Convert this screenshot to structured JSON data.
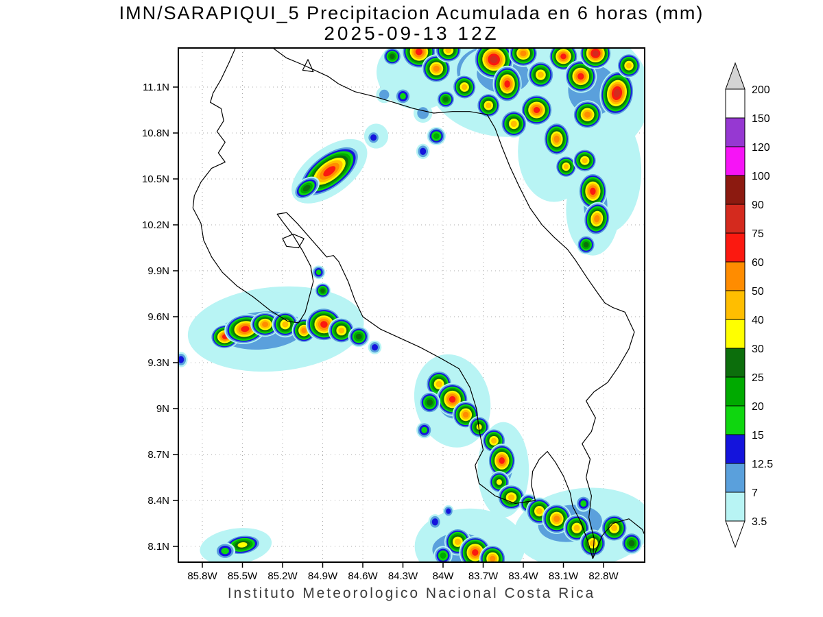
{
  "title": {
    "line1": "IMN/SARAPIQUI_5 Precipitacion Acumulada en 6 horas (mm)",
    "line2": "2025-09-13 12Z"
  },
  "caption": "Instituto Meteorologico Nacional Costa Rica",
  "axes": {
    "lat_labels": [
      "11.1N",
      "10.8N",
      "10.5N",
      "10.2N",
      "9.9N",
      "9.6N",
      "9.3N",
      "9N",
      "8.7N",
      "8.4N",
      "8.1N"
    ],
    "lat_values": [
      11.1,
      10.8,
      10.5,
      10.2,
      9.9,
      9.6,
      9.3,
      9.0,
      8.7,
      8.4,
      8.1
    ],
    "lon_labels": [
      "85.8W",
      "85.5W",
      "85.2W",
      "84.9W",
      "84.6W",
      "84.3W",
      "84W",
      "83.7W",
      "83.4W",
      "83.1W",
      "82.8W"
    ],
    "lon_values": [
      85.8,
      85.5,
      85.2,
      84.9,
      84.6,
      84.3,
      84.0,
      83.7,
      83.4,
      83.1,
      82.8
    ]
  },
  "chart_data": {
    "type": "heatmap",
    "title": "IMN/SARAPIQUI_5 Precipitacion Acumulada en 6 horas (mm)",
    "valid_time": "2025-09-13 12Z",
    "units": "mm",
    "lon_range_w": [
      85.98,
      82.49
    ],
    "lat_range_n": [
      7.99,
      11.36
    ],
    "colorbar": {
      "levels_mm": [
        3.5,
        7,
        12.5,
        15,
        20,
        25,
        30,
        40,
        50,
        60,
        75,
        90,
        100,
        120,
        150,
        200
      ],
      "labels": [
        "200",
        "150",
        "120",
        "100",
        "90",
        "75",
        "60",
        "50",
        "40",
        "30",
        "25",
        "20",
        "15",
        "12.5",
        "7",
        "3.5"
      ],
      "band_colors": [
        "#b8f4f4",
        "#5aa0dc",
        "#1414dc",
        "#0fd60f",
        "#00aa00",
        "#0c6e0c",
        "#ffff00",
        "#ffbe00",
        "#ff8c00",
        "#fb1910",
        "#d42a1e",
        "#8c1a10",
        "#f614f6",
        "#9638d2",
        "#ffffff"
      ],
      "above_color": "#d4d4d4",
      "below_color": "#ffffff"
    },
    "cells_format": [
      "lon_w",
      "lat_n",
      "peak_mm",
      "radius_deg",
      "stretch_x",
      "stretch_y",
      "rotation_deg"
    ],
    "background_patches": [
      [
        83.55,
        11.15,
        3.5,
        0.5,
        1.15,
        0.75,
        5
      ],
      [
        82.9,
        11.05,
        3.5,
        0.45,
        1.0,
        0.9,
        0
      ],
      [
        82.78,
        10.55,
        3.5,
        0.35,
        0.75,
        1.15,
        0
      ],
      [
        84.2,
        11.18,
        3.5,
        0.3,
        1.0,
        0.75,
        15
      ],
      [
        84.85,
        10.55,
        3.5,
        0.33,
        1.0,
        0.45,
        -37
      ],
      [
        85.25,
        9.52,
        3.5,
        0.55,
        1.2,
        0.5,
        -5
      ],
      [
        83.93,
        9.05,
        3.5,
        0.28,
        1.0,
        1.1,
        -15
      ],
      [
        83.55,
        8.6,
        3.5,
        0.24,
        0.8,
        1.3,
        0
      ],
      [
        83.8,
        8.1,
        3.5,
        0.33,
        1.25,
        0.75,
        0
      ],
      [
        82.95,
        8.22,
        3.5,
        0.4,
        1.3,
        0.65,
        -6
      ],
      [
        85.55,
        8.1,
        3.5,
        0.18,
        1.5,
        0.65,
        -8
      ],
      [
        83.17,
        10.68,
        3.5,
        0.3,
        0.9,
        1.1,
        0
      ],
      [
        82.88,
        10.3,
        3.5,
        0.25,
        0.8,
        1.2,
        0
      ],
      [
        84.5,
        10.78,
        3.5,
        0.09,
        1.0,
        0.9,
        0
      ],
      [
        83.66,
        11.2,
        7,
        0.35,
        1.1,
        0.75,
        5
      ],
      [
        82.88,
        11.08,
        7,
        0.3,
        1.0,
        0.9,
        0
      ],
      [
        85.35,
        9.51,
        7,
        0.4,
        1.3,
        0.5,
        -5
      ],
      [
        84.88,
        9.54,
        7,
        0.2,
        1.1,
        0.7,
        5
      ],
      [
        82.86,
        10.33,
        7,
        0.18,
        0.8,
        1.2,
        0
      ],
      [
        83.88,
        8.08,
        7,
        0.25,
        1.3,
        0.7,
        0
      ],
      [
        83.05,
        8.25,
        7,
        0.3,
        1.3,
        0.65,
        -6
      ],
      [
        83.93,
        9.05,
        7,
        0.18,
        1.0,
        1.05,
        -15
      ],
      [
        83.56,
        8.62,
        7,
        0.16,
        0.8,
        1.25,
        0
      ],
      [
        84.85,
        10.55,
        7,
        0.29,
        1.0,
        0.42,
        -37
      ],
      [
        83.55,
        11.18,
        7,
        0.28,
        1.15,
        0.7,
        5
      ]
    ],
    "cells": [
      [
        84.18,
        11.33,
        60,
        0.13,
        1.0,
        0.85,
        15
      ],
      [
        84.38,
        11.3,
        25,
        0.07,
        1.0,
        0.85,
        0
      ],
      [
        84.05,
        11.22,
        50,
        0.11,
        1.0,
        0.85,
        0
      ],
      [
        83.96,
        11.34,
        40,
        0.1,
        1.0,
        0.8,
        0
      ],
      [
        83.84,
        11.1,
        40,
        0.09,
        1.0,
        0.9,
        -20
      ],
      [
        83.98,
        11.02,
        25,
        0.07,
        1.0,
        0.85,
        0
      ],
      [
        83.62,
        11.28,
        75,
        0.15,
        1.0,
        0.85,
        10
      ],
      [
        83.52,
        11.12,
        60,
        0.12,
        0.9,
        1.0,
        0
      ],
      [
        83.4,
        11.32,
        50,
        0.11,
        1.0,
        0.8,
        0
      ],
      [
        83.27,
        11.18,
        40,
        0.1,
        1.0,
        0.9,
        0
      ],
      [
        83.1,
        11.3,
        60,
        0.11,
        1.0,
        0.85,
        0
      ],
      [
        82.97,
        11.17,
        60,
        0.12,
        1.0,
        0.9,
        -15
      ],
      [
        82.86,
        11.32,
        75,
        0.12,
        1.0,
        0.85,
        0
      ],
      [
        82.7,
        11.06,
        75,
        0.15,
        0.85,
        1.0,
        10
      ],
      [
        82.61,
        11.24,
        40,
        0.09,
        1.0,
        0.9,
        0
      ],
      [
        82.92,
        10.92,
        50,
        0.11,
        1.0,
        0.85,
        -10
      ],
      [
        83.3,
        10.95,
        60,
        0.12,
        1.0,
        0.85,
        0
      ],
      [
        83.47,
        10.86,
        40,
        0.1,
        1.0,
        0.9,
        0
      ],
      [
        83.66,
        10.98,
        40,
        0.09,
        1.0,
        0.9,
        0
      ],
      [
        83.15,
        10.76,
        50,
        0.11,
        0.9,
        1.0,
        0
      ],
      [
        83.08,
        10.58,
        40,
        0.08,
        1.0,
        0.9,
        0
      ],
      [
        82.94,
        10.62,
        40,
        0.09,
        1.0,
        0.85,
        0
      ],
      [
        82.88,
        10.42,
        60,
        0.12,
        0.9,
        1.0,
        0
      ],
      [
        82.85,
        10.24,
        50,
        0.11,
        0.9,
        1.0,
        10
      ],
      [
        82.93,
        10.07,
        25,
        0.07,
        1.0,
        0.9,
        0
      ],
      [
        84.05,
        10.78,
        20,
        0.07,
        1.0,
        0.85,
        0
      ],
      [
        84.15,
        10.68,
        12.5,
        0.05,
        1.0,
        1.0,
        0
      ],
      [
        84.3,
        11.04,
        15,
        0.06,
        1.0,
        0.9,
        0
      ],
      [
        84.15,
        10.93,
        7,
        0.07,
        1.0,
        0.9,
        0
      ],
      [
        84.44,
        11.05,
        7,
        0.06,
        1.0,
        0.9,
        0
      ],
      [
        84.85,
        10.55,
        60,
        0.27,
        1.0,
        0.42,
        -37
      ],
      [
        85.02,
        10.44,
        25,
        0.11,
        1.0,
        0.55,
        -37
      ],
      [
        84.52,
        10.77,
        12.5,
        0.05,
        1.0,
        0.9,
        0
      ],
      [
        85.63,
        9.47,
        60,
        0.1,
        1.1,
        0.8,
        -8
      ],
      [
        85.48,
        9.52,
        60,
        0.13,
        1.2,
        0.75,
        -8
      ],
      [
        85.33,
        9.55,
        50,
        0.1,
        1.1,
        0.8,
        0
      ],
      [
        85.18,
        9.55,
        40,
        0.1,
        1.0,
        0.85,
        0
      ],
      [
        85.04,
        9.51,
        50,
        0.09,
        1.0,
        0.9,
        0
      ],
      [
        84.89,
        9.55,
        60,
        0.13,
        1.05,
        0.85,
        5
      ],
      [
        84.76,
        9.51,
        40,
        0.1,
        1.0,
        0.85,
        0
      ],
      [
        84.63,
        9.47,
        25,
        0.08,
        1.0,
        0.85,
        0
      ],
      [
        84.51,
        9.4,
        12.5,
        0.05,
        1.0,
        0.9,
        0
      ],
      [
        84.9,
        9.77,
        25,
        0.06,
        1.0,
        0.85,
        0
      ],
      [
        84.93,
        9.89,
        15,
        0.05,
        1.0,
        0.9,
        0
      ],
      [
        85.96,
        9.32,
        12.5,
        0.05,
        1.0,
        1.0,
        0
      ],
      [
        84.03,
        9.16,
        40,
        0.1,
        1.0,
        0.9,
        0
      ],
      [
        83.93,
        9.06,
        60,
        0.12,
        1.0,
        0.9,
        -10
      ],
      [
        83.83,
        8.96,
        50,
        0.1,
        1.0,
        0.9,
        0
      ],
      [
        84.1,
        9.04,
        25,
        0.08,
        1.0,
        0.9,
        0
      ],
      [
        83.73,
        8.88,
        30,
        0.08,
        1.0,
        0.9,
        0
      ],
      [
        84.14,
        8.86,
        15,
        0.06,
        1.0,
        0.9,
        0
      ],
      [
        83.62,
        8.79,
        40,
        0.09,
        1.0,
        0.9,
        0
      ],
      [
        83.56,
        8.66,
        60,
        0.11,
        0.95,
        1.0,
        0
      ],
      [
        83.58,
        8.52,
        30,
        0.08,
        1.0,
        0.9,
        0
      ],
      [
        83.49,
        8.42,
        40,
        0.1,
        1.05,
        0.85,
        0
      ],
      [
        83.36,
        8.38,
        25,
        0.07,
        1.0,
        0.9,
        0
      ],
      [
        83.89,
        8.13,
        40,
        0.1,
        1.0,
        0.9,
        0
      ],
      [
        83.76,
        8.06,
        60,
        0.12,
        1.0,
        0.9,
        0
      ],
      [
        83.63,
        8.02,
        50,
        0.1,
        1.0,
        0.9,
        0
      ],
      [
        84.0,
        8.04,
        20,
        0.07,
        1.0,
        0.9,
        0
      ],
      [
        84.06,
        8.26,
        12.5,
        0.05,
        1.0,
        1.0,
        0
      ],
      [
        83.96,
        8.33,
        12.5,
        0.04,
        1.0,
        1.0,
        0
      ],
      [
        83.28,
        8.33,
        40,
        0.1,
        1.0,
        0.9,
        0
      ],
      [
        83.15,
        8.28,
        50,
        0.11,
        1.0,
        0.9,
        0
      ],
      [
        83.0,
        8.22,
        40,
        0.1,
        1.0,
        0.9,
        0
      ],
      [
        82.88,
        8.12,
        40,
        0.1,
        1.0,
        0.9,
        0
      ],
      [
        82.72,
        8.22,
        40,
        0.1,
        1.0,
        0.9,
        0
      ],
      [
        82.59,
        8.12,
        25,
        0.08,
        1.0,
        0.9,
        0
      ],
      [
        82.95,
        8.38,
        15,
        0.06,
        1.0,
        0.9,
        0
      ],
      [
        85.5,
        8.11,
        30,
        0.1,
        1.4,
        0.65,
        -8
      ],
      [
        85.63,
        8.07,
        15,
        0.07,
        1.1,
        0.8,
        0
      ]
    ]
  },
  "map": {
    "coastlines": [
      [
        [
          85.55,
          11.36
        ],
        [
          85.6,
          11.26
        ],
        [
          85.66,
          11.15
        ],
        [
          85.72,
          11.06
        ],
        [
          85.74,
          11.0
        ],
        [
          85.66,
          10.96
        ],
        [
          85.64,
          10.88
        ],
        [
          85.69,
          10.81
        ],
        [
          85.63,
          10.74
        ],
        [
          85.68,
          10.67
        ],
        [
          85.63,
          10.61
        ],
        [
          85.73,
          10.57
        ],
        [
          85.81,
          10.48
        ],
        [
          85.86,
          10.39
        ],
        [
          85.87,
          10.31
        ],
        [
          85.81,
          10.21
        ],
        [
          85.79,
          10.1
        ],
        [
          85.73,
          9.99
        ],
        [
          85.65,
          9.89
        ],
        [
          85.54,
          9.8
        ],
        [
          85.42,
          9.73
        ],
        [
          85.29,
          9.64
        ],
        [
          85.16,
          9.57
        ],
        [
          85.08,
          9.56
        ],
        [
          85.03,
          9.63
        ],
        [
          85.0,
          9.73
        ],
        [
          84.97,
          9.83
        ],
        [
          84.99,
          9.93
        ],
        [
          85.05,
          10.03
        ],
        [
          85.12,
          10.13
        ],
        [
          85.19,
          10.21
        ],
        [
          85.24,
          10.27
        ],
        [
          85.17,
          10.28
        ],
        [
          85.09,
          10.21
        ],
        [
          85.0,
          10.12
        ],
        [
          84.92,
          10.04
        ],
        [
          84.87,
          9.99
        ],
        [
          84.82,
          10.0
        ],
        [
          84.78,
          9.96
        ],
        [
          84.71,
          9.83
        ],
        [
          84.66,
          9.71
        ],
        [
          84.6,
          9.6
        ],
        [
          84.47,
          9.52
        ],
        [
          84.32,
          9.46
        ],
        [
          84.17,
          9.4
        ],
        [
          84.02,
          9.33
        ],
        [
          83.88,
          9.26
        ],
        [
          83.8,
          9.14
        ],
        [
          83.75,
          9.0
        ],
        [
          83.73,
          8.86
        ],
        [
          83.7,
          8.73
        ],
        [
          83.76,
          8.63
        ],
        [
          83.73,
          8.51
        ],
        [
          83.61,
          8.43
        ],
        [
          83.46,
          8.38
        ],
        [
          83.31,
          8.4
        ],
        [
          83.34,
          8.5
        ],
        [
          83.33,
          8.59
        ],
        [
          83.28,
          8.67
        ],
        [
          83.22,
          8.72
        ],
        [
          83.16,
          8.65
        ],
        [
          83.1,
          8.56
        ],
        [
          83.05,
          8.45
        ],
        [
          83.03,
          8.36
        ],
        [
          82.97,
          8.26
        ],
        [
          82.92,
          8.14
        ],
        [
          82.88,
          8.02
        ]
      ],
      [
        [
          85.28,
          11.36
        ],
        [
          85.17,
          11.29
        ],
        [
          85.06,
          11.25
        ],
        [
          84.96,
          11.21
        ],
        [
          84.86,
          11.17
        ],
        [
          84.78,
          11.12
        ],
        [
          84.66,
          11.07
        ],
        [
          84.52,
          11.04
        ],
        [
          84.37,
          11.0
        ],
        [
          84.22,
          10.96
        ],
        [
          84.07,
          10.93
        ],
        [
          83.93,
          10.94
        ],
        [
          83.8,
          10.94
        ],
        [
          83.67,
          10.92
        ],
        [
          83.61,
          10.83
        ],
        [
          83.56,
          10.71
        ],
        [
          83.5,
          10.58
        ],
        [
          83.43,
          10.45
        ],
        [
          83.35,
          10.31
        ],
        [
          83.26,
          10.2
        ],
        [
          83.17,
          10.12
        ],
        [
          83.07,
          10.04
        ],
        [
          83.01,
          9.97
        ],
        [
          82.92,
          9.85
        ],
        [
          82.84,
          9.75
        ],
        [
          82.79,
          9.69
        ],
        [
          82.73,
          9.66
        ],
        [
          82.64,
          9.63
        ],
        [
          82.57,
          9.5
        ],
        [
          82.61,
          9.39
        ],
        [
          82.69,
          9.27
        ],
        [
          82.77,
          9.17
        ],
        [
          82.87,
          9.11
        ],
        [
          82.93,
          9.05
        ],
        [
          82.86,
          8.94
        ],
        [
          82.89,
          8.85
        ],
        [
          82.96,
          8.77
        ],
        [
          82.9,
          8.67
        ],
        [
          82.93,
          8.55
        ],
        [
          82.89,
          8.43
        ],
        [
          82.91,
          8.29
        ],
        [
          82.87,
          8.15
        ],
        [
          82.88,
          8.02
        ]
      ],
      [
        [
          82.88,
          8.02
        ],
        [
          82.81,
          8.17
        ],
        [
          82.73,
          8.25
        ],
        [
          82.61,
          8.28
        ],
        [
          82.51,
          8.21
        ],
        [
          82.49,
          8.17
        ]
      ]
    ],
    "islands": [
      [
        [
          85.2,
          10.11
        ],
        [
          85.12,
          10.14
        ],
        [
          85.04,
          10.11
        ],
        [
          85.08,
          10.05
        ],
        [
          85.17,
          10.06
        ]
      ],
      [
        [
          85.05,
          11.21
        ],
        [
          84.97,
          11.2
        ],
        [
          85.01,
          11.28
        ]
      ]
    ]
  }
}
